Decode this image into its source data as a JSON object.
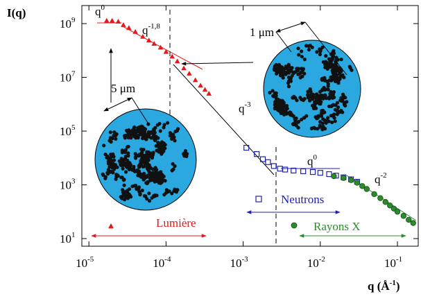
{
  "chart_data": {
    "type": "scatter",
    "ylabel": "I(q)",
    "xlabel": {
      "text": "q (Å",
      "sup": "-1",
      "end": ")"
    },
    "xscale": "log",
    "yscale": "log",
    "xlim": [
      8.1e-06,
      0.186
    ],
    "ylim": [
      5.2,
      4700000000
    ],
    "xticks": [
      {
        "value": 1e-05,
        "label": "10",
        "sup": "-5"
      },
      {
        "value": 0.0001,
        "label": "10",
        "sup": "-4"
      },
      {
        "value": 0.001,
        "label": "10",
        "sup": "-3"
      },
      {
        "value": 0.01,
        "label": "10",
        "sup": "-2"
      },
      {
        "value": 0.1,
        "label": "10",
        "sup": "-1"
      }
    ],
    "yticks": [
      {
        "value": 10,
        "label": "10",
        "sup": "1"
      },
      {
        "value": 1000,
        "label": "10",
        "sup": "3"
      },
      {
        "value": 100000,
        "label": "10",
        "sup": "5"
      },
      {
        "value": 10000000,
        "label": "10",
        "sup": "7"
      },
      {
        "value": 1000000000,
        "label": "10",
        "sup": "9"
      }
    ],
    "series": [
      {
        "name": "Lumière",
        "color": "#e3191c",
        "marker": "triangle",
        "x": [
          1.7e-05,
          2e-05,
          2.4e-05,
          2.8e-05,
          3.3e-05,
          4e-05,
          5e-05,
          6e-05,
          7e-05,
          8.5e-05,
          0.0001,
          0.00012,
          0.00014,
          0.00017,
          0.0002,
          0.00024,
          0.00028,
          0.00032,
          0.00036
        ],
        "values": [
          1300000000,
          1300000000,
          1200000000,
          900000000,
          700000000,
          500000000,
          330000000,
          240000000,
          180000000,
          130000000,
          90000000,
          60000000,
          40000000,
          22000000,
          14000000,
          8000000,
          5000000,
          3500000,
          2500000
        ]
      },
      {
        "name": "Neutrons",
        "color": "#1f1fb0",
        "marker": "square",
        "x": [
          0.0011,
          0.0015,
          0.0018,
          0.0021,
          0.0025,
          0.003,
          0.0035,
          0.0045,
          0.006,
          0.008,
          0.01,
          0.013,
          0.016,
          0.02,
          0.025,
          0.03
        ],
        "values": [
          24000,
          14000,
          9000,
          7000,
          5000,
          4000,
          3700,
          3400,
          3200,
          3000,
          2800,
          2500,
          2200,
          1900,
          1600,
          1300
        ]
      },
      {
        "name": "Rayons X",
        "color": "#2a8c2a",
        "marker": "circle",
        "x": [
          0.015,
          0.02,
          0.025,
          0.03,
          0.035,
          0.04,
          0.05,
          0.06,
          0.07,
          0.08,
          0.09,
          0.1,
          0.12,
          0.14,
          0.16
        ],
        "values": [
          2100,
          1800,
          1500,
          1200,
          900,
          700,
          450,
          320,
          230,
          170,
          130,
          100,
          70,
          50,
          38
        ]
      }
    ],
    "annotations": [
      {
        "text": "q",
        "sup": "0"
      },
      {
        "text": "q",
        "sup": "-1,8"
      },
      {
        "text": "q",
        "sup": "-3"
      },
      {
        "text": "q",
        "sup": "0"
      },
      {
        "text": "q",
        "sup": "-2"
      }
    ],
    "scale_labels": [
      "5 μm",
      "1 μm"
    ]
  }
}
